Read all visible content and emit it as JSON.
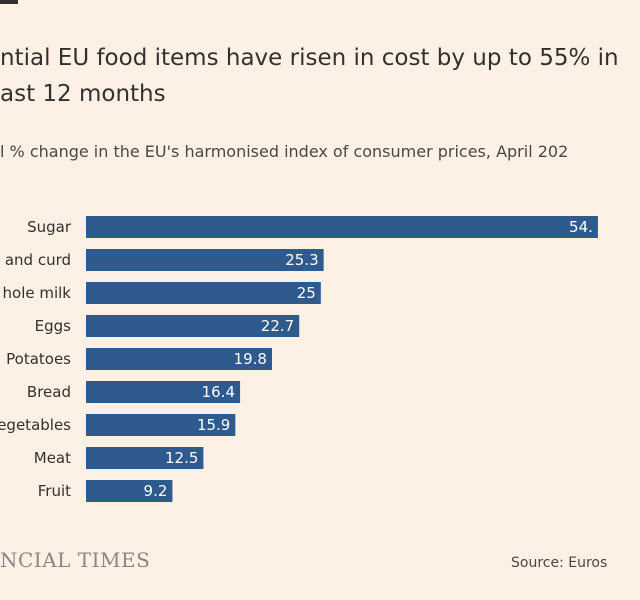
{
  "header": {
    "title_line1": "ntial EU food items have risen in cost by up to 55% in",
    "title_line2": "ast 12 months",
    "subtitle": "l % change in the EU's harmonised index of consumer prices, April 202"
  },
  "footer": {
    "brand": "NCIAL TIMES",
    "source": "Source: Euros"
  },
  "colors": {
    "bar": "#2e5a8d",
    "background": "#fdf1e5",
    "text": "#33302e"
  },
  "chart_data": {
    "type": "bar",
    "orientation": "horizontal",
    "categories": [
      "Sugar",
      "and curd",
      "hole milk",
      "Eggs",
      "Potatoes",
      "Bread",
      "egetables",
      "Meat",
      "Fruit"
    ],
    "values": [
      54.5,
      25.3,
      25,
      22.7,
      19.8,
      16.4,
      15.9,
      12.5,
      9.2
    ],
    "value_labels": [
      "54.",
      "25.3",
      "25",
      "22.7",
      "19.8",
      "16.4",
      "15.9",
      "12.5",
      "9.2"
    ],
    "xlim": [
      0,
      56
    ],
    "grid": false,
    "legend": "none"
  }
}
